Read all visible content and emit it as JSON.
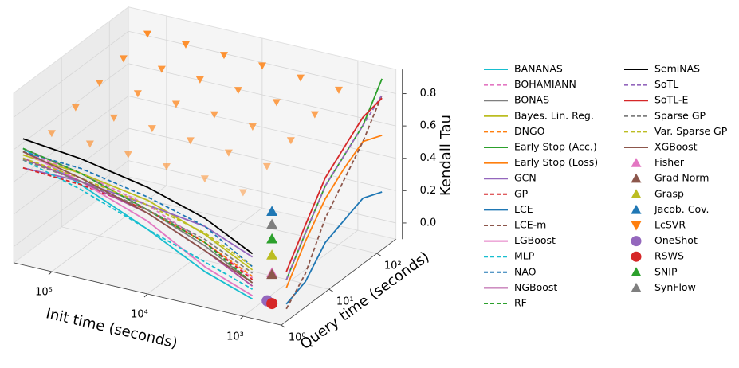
{
  "chart_data": {
    "type": "line3d",
    "xlabel": "Init time (seconds)",
    "ylabel": "Query time (seconds)",
    "zlabel": "Kendall Tau",
    "xlog": true,
    "ylog": true,
    "grid": true,
    "xlim": [
      400,
      250000
    ],
    "ylim": [
      1,
      250
    ],
    "zlim": [
      -0.1,
      0.95
    ],
    "xticks": [
      {
        "value": 1000,
        "label": "10³"
      },
      {
        "value": 10000,
        "label": "10⁴"
      },
      {
        "value": 100000,
        "label": "10⁵"
      }
    ],
    "yticks": [
      {
        "value": 1,
        "label": "10⁰"
      },
      {
        "value": 10,
        "label": "10¹"
      },
      {
        "value": 100,
        "label": "10²"
      }
    ],
    "zticks": [
      {
        "value": 0,
        "label": "0.0"
      },
      0.2,
      0.4,
      0.6,
      0.8
    ],
    "series": [
      {
        "name": "BANANAS",
        "color": "#17becf",
        "style": "solid",
        "x": [
          200000,
          50000,
          10000,
          2500,
          800
        ],
        "y": [
          1,
          1,
          1,
          1,
          1
        ],
        "z": [
          0.62,
          0.48,
          0.3,
          0.12,
          0.02
        ]
      },
      {
        "name": "BOHAMIANN",
        "color": "#e377c2",
        "style": "dashed",
        "x": [
          200000,
          50000,
          10000,
          2500,
          800
        ],
        "y": [
          1,
          1,
          1,
          1,
          1
        ],
        "z": [
          0.6,
          0.55,
          0.45,
          0.3,
          0.15
        ]
      },
      {
        "name": "BONAS",
        "color": "#7f7f7f",
        "style": "solid",
        "x": [
          200000,
          50000,
          10000,
          2500,
          800
        ],
        "y": [
          1,
          1,
          1,
          1,
          1
        ],
        "z": [
          0.62,
          0.55,
          0.42,
          0.28,
          0.12
        ]
      },
      {
        "name": "Bayes. Lin. Reg.",
        "color": "#bcbd22",
        "style": "solid",
        "x": [
          200000,
          50000,
          10000,
          2500,
          800
        ],
        "y": [
          1,
          1,
          1,
          1,
          1
        ],
        "z": [
          0.58,
          0.55,
          0.48,
          0.35,
          0.2
        ]
      },
      {
        "name": "DNGO",
        "color": "#ff7f0e",
        "style": "dashed",
        "x": [
          200000,
          50000,
          10000,
          2500,
          800
        ],
        "y": [
          1,
          1,
          1,
          1,
          1
        ],
        "z": [
          0.55,
          0.5,
          0.42,
          0.3,
          0.16
        ]
      },
      {
        "name": "Early Stop (Acc.)",
        "color": "#2ca02c",
        "style": "solid",
        "x": [
          500,
          500,
          500,
          500,
          500,
          500
        ],
        "y": [
          2,
          5,
          13,
          32,
          80,
          200
        ],
        "z": [
          0.1,
          0.3,
          0.5,
          0.6,
          0.7,
          0.9
        ]
      },
      {
        "name": "Early Stop (Loss)",
        "color": "#ff7f0e",
        "style": "solid",
        "x": [
          500,
          500,
          500,
          500,
          500,
          500
        ],
        "y": [
          2,
          5,
          13,
          32,
          80,
          200
        ],
        "z": [
          0.05,
          0.25,
          0.42,
          0.52,
          0.6,
          0.55
        ]
      },
      {
        "name": "GCN",
        "color": "#9467bd",
        "style": "solid",
        "x": [
          200000,
          50000,
          10000,
          2500,
          800
        ],
        "y": [
          1,
          1,
          1,
          1,
          1
        ],
        "z": [
          0.5,
          0.5,
          0.45,
          0.4,
          0.28
        ]
      },
      {
        "name": "GP",
        "color": "#d62728",
        "style": "dashed",
        "x": [
          200000,
          50000,
          10000,
          2500,
          800
        ],
        "y": [
          1,
          1,
          1,
          1,
          1
        ],
        "z": [
          0.5,
          0.48,
          0.42,
          0.3,
          0.14
        ]
      },
      {
        "name": "LCE",
        "color": "#1f77b4",
        "style": "solid",
        "x": [
          500,
          500,
          500,
          500,
          500,
          500
        ],
        "y": [
          2,
          5,
          13,
          32,
          80,
          200
        ],
        "z": [
          -0.05,
          0.0,
          0.15,
          0.2,
          0.25,
          0.2
        ]
      },
      {
        "name": "LCE-m",
        "color": "#8c564b",
        "style": "dashed",
        "x": [
          500,
          500,
          500,
          500,
          500,
          500
        ],
        "y": [
          2,
          5,
          13,
          32,
          80,
          200
        ],
        "z": [
          -0.08,
          0.05,
          0.3,
          0.45,
          0.6,
          0.8
        ]
      },
      {
        "name": "LGBoost",
        "color": "#e377c2",
        "style": "solid",
        "x": [
          200000,
          50000,
          10000,
          2500,
          800
        ],
        "y": [
          1,
          1,
          1,
          1,
          1
        ],
        "z": [
          0.6,
          0.5,
          0.35,
          0.15,
          0.04
        ]
      },
      {
        "name": "MLP",
        "color": "#17becf",
        "style": "dashed",
        "x": [
          200000,
          50000,
          10000,
          2500,
          800
        ],
        "y": [
          1,
          1,
          1,
          1,
          1
        ],
        "z": [
          0.55,
          0.45,
          0.3,
          0.18,
          0.08
        ]
      },
      {
        "name": "NAO",
        "color": "#1f77b4",
        "style": "dashed",
        "x": [
          200000,
          50000,
          10000,
          2500,
          800
        ],
        "y": [
          1,
          1,
          1,
          1,
          1
        ],
        "z": [
          0.6,
          0.58,
          0.5,
          0.4,
          0.22
        ]
      },
      {
        "name": "NGBoost",
        "color": "#b04c9e",
        "style": "solid",
        "x": [
          200000,
          50000,
          10000,
          2500,
          800
        ],
        "y": [
          1,
          1,
          1,
          1,
          1
        ],
        "z": [
          0.56,
          0.5,
          0.4,
          0.25,
          0.1
        ]
      },
      {
        "name": "RF",
        "color": "#2ca02c",
        "style": "dashed",
        "x": [
          200000,
          50000,
          10000,
          2500,
          800
        ],
        "y": [
          1,
          1,
          1,
          1,
          1
        ],
        "z": [
          0.62,
          0.55,
          0.42,
          0.3,
          0.12
        ]
      },
      {
        "name": "SemiNAS",
        "color": "#000000",
        "style": "solid",
        "x": [
          200000,
          50000,
          10000,
          2500,
          800
        ],
        "y": [
          1,
          1,
          1,
          1,
          1
        ],
        "z": [
          0.68,
          0.64,
          0.56,
          0.45,
          0.3
        ]
      },
      {
        "name": "SoTL",
        "color": "#9467bd",
        "style": "dashed",
        "x": [
          500,
          500,
          500,
          500,
          500,
          500
        ],
        "y": [
          2,
          5,
          13,
          32,
          80,
          200
        ],
        "z": [
          0.1,
          0.3,
          0.5,
          0.6,
          0.7,
          0.8
        ]
      },
      {
        "name": "SoTL-E",
        "color": "#d62728",
        "style": "solid",
        "x": [
          500,
          500,
          500,
          500,
          500,
          500
        ],
        "y": [
          2,
          5,
          13,
          32,
          80,
          200
        ],
        "z": [
          0.15,
          0.35,
          0.55,
          0.65,
          0.75,
          0.78
        ]
      },
      {
        "name": "Sparse GP",
        "color": "#7f7f7f",
        "style": "dashed",
        "x": [
          200000,
          50000,
          10000,
          2500,
          800
        ],
        "y": [
          1,
          1,
          1,
          1,
          1
        ],
        "z": [
          0.55,
          0.5,
          0.42,
          0.32,
          0.18
        ]
      },
      {
        "name": "Var. Sparse GP",
        "color": "#bcbd22",
        "style": "dashed",
        "x": [
          200000,
          50000,
          10000,
          2500,
          800
        ],
        "y": [
          1,
          1,
          1,
          1,
          1
        ],
        "z": [
          0.56,
          0.52,
          0.45,
          0.36,
          0.22
        ]
      },
      {
        "name": "XGBoost",
        "color": "#8c564b",
        "style": "solid",
        "x": [
          200000,
          50000,
          10000,
          2500,
          800
        ],
        "y": [
          1,
          1,
          1,
          1,
          1
        ],
        "z": [
          0.6,
          0.52,
          0.4,
          0.25,
          0.12
        ]
      },
      {
        "name": "Fisher",
        "color": "#e377c2",
        "style": "marker",
        "marker": "triangle-up",
        "x": [
          500
        ],
        "y": [
          1
        ],
        "z": [
          0.21
        ]
      },
      {
        "name": "Grad Norm",
        "color": "#8c564b",
        "style": "marker",
        "marker": "triangle-up",
        "x": [
          500
        ],
        "y": [
          1
        ],
        "z": [
          0.2
        ]
      },
      {
        "name": "Grasp",
        "color": "#bcbd22",
        "style": "marker",
        "marker": "triangle-up",
        "x": [
          500
        ],
        "y": [
          1
        ],
        "z": [
          0.32
        ]
      },
      {
        "name": "Jacob. Cov.",
        "color": "#1f77b4",
        "style": "marker",
        "marker": "triangle-up",
        "x": [
          500
        ],
        "y": [
          1
        ],
        "z": [
          0.59
        ]
      },
      {
        "name": "LcSVR",
        "color": "#ff7f0e",
        "style": "marker",
        "marker": "triangle-down",
        "x": [
          1585,
          1585,
          1585,
          1585,
          1585,
          3981,
          3981,
          3981,
          3981,
          3981,
          10000,
          10000,
          10000,
          10000,
          10000,
          25119,
          25119,
          25119,
          25119,
          25119,
          63096,
          63096,
          63096,
          63096,
          63096,
          158489,
          158489,
          158489,
          158489,
          158489
        ],
        "y": [
          2.5,
          7.9,
          25,
          79,
          251,
          2.5,
          7.9,
          25,
          79,
          251,
          2.5,
          7.9,
          25,
          79,
          251,
          2.5,
          7.9,
          25,
          79,
          251,
          2.5,
          7.9,
          25,
          79,
          251,
          2.5,
          7.9,
          25,
          79,
          251
        ],
        "z": [
          0.55,
          0.6,
          0.65,
          0.7,
          0.74,
          0.58,
          0.63,
          0.68,
          0.72,
          0.76,
          0.6,
          0.65,
          0.7,
          0.74,
          0.78,
          0.62,
          0.67,
          0.71,
          0.75,
          0.79,
          0.63,
          0.68,
          0.72,
          0.76,
          0.8,
          0.64,
          0.69,
          0.73,
          0.77,
          0.81
        ]
      },
      {
        "name": "OneShot",
        "color": "#9467bd",
        "style": "marker",
        "marker": "circle",
        "x": [
          560
        ],
        "y": [
          1
        ],
        "z": [
          0.03
        ]
      },
      {
        "name": "RSWS",
        "color": "#d62728",
        "style": "marker",
        "marker": "circle",
        "x": [
          500
        ],
        "y": [
          1
        ],
        "z": [
          0.02
        ]
      },
      {
        "name": "SNIP",
        "color": "#2ca02c",
        "style": "marker",
        "marker": "triangle-up",
        "x": [
          500
        ],
        "y": [
          1
        ],
        "z": [
          0.42
        ]
      },
      {
        "name": "SynFlow",
        "color": "#7f7f7f",
        "style": "marker",
        "marker": "triangle-up",
        "x": [
          500
        ],
        "y": [
          1
        ],
        "z": [
          0.51
        ]
      }
    ]
  }
}
